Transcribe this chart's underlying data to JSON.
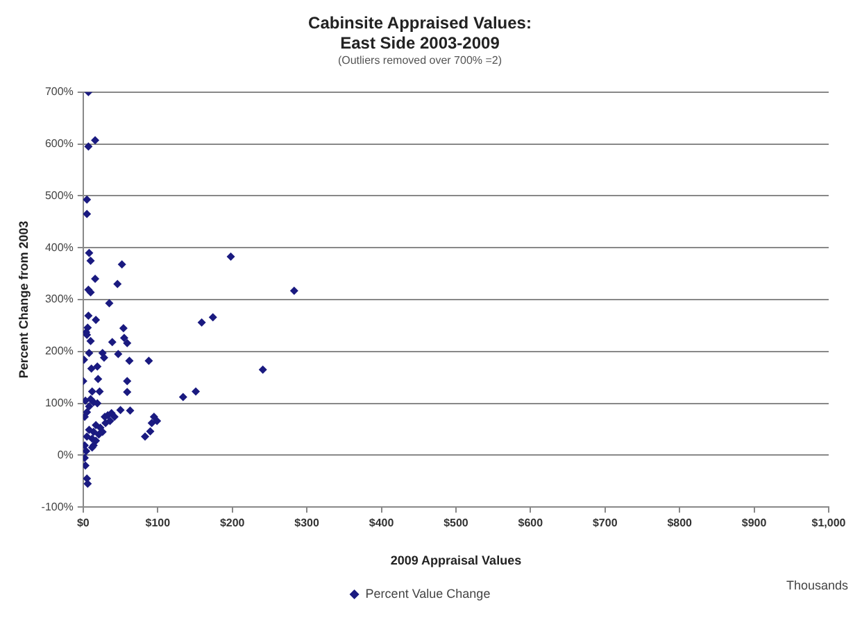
{
  "chart_data": {
    "type": "scatter",
    "title": [
      "Cabinsite Appraised Values:",
      "East Side 2003-2009"
    ],
    "subtitle": "(Outliers removed over 700% =2)",
    "xlabel": "2009 Appraisal Values",
    "ylabel": "Percent Change from 2003",
    "annotations": [
      "Thousands"
    ],
    "xlim": [
      0,
      1000
    ],
    "xticks": [
      {
        "value": 0,
        "label": "$0"
      },
      {
        "value": 100,
        "label": "$100"
      },
      {
        "value": 200,
        "label": "$200"
      },
      {
        "value": 300,
        "label": "$300"
      },
      {
        "value": 400,
        "label": "$400"
      },
      {
        "value": 500,
        "label": "$500"
      },
      {
        "value": 600,
        "label": "$600"
      },
      {
        "value": 700,
        "label": "$700"
      },
      {
        "value": 800,
        "label": "$800"
      },
      {
        "value": 900,
        "label": "$900"
      },
      {
        "value": 1000,
        "label": "$1,000"
      }
    ],
    "ylim": [
      -100,
      700
    ],
    "yticks": [
      {
        "value": -100,
        "label": "-100%"
      },
      {
        "value": 0,
        "label": "0%"
      },
      {
        "value": 100,
        "label": "100%"
      },
      {
        "value": 200,
        "label": "200%"
      },
      {
        "value": 300,
        "label": "300%"
      },
      {
        "value": 400,
        "label": "400%"
      },
      {
        "value": 500,
        "label": "500%"
      },
      {
        "value": 600,
        "label": "600%"
      },
      {
        "value": 700,
        "label": "700%"
      }
    ],
    "grid": "y",
    "legend": "bottom",
    "marker": "diamond",
    "series": [
      {
        "name": "Percent Value Change",
        "color": "#1a1a80",
        "x": [
          7,
          7,
          16,
          5,
          5,
          8,
          10,
          52,
          16,
          46,
          7,
          10,
          35,
          7,
          17,
          6,
          4,
          54,
          5,
          55,
          10,
          39,
          59,
          159,
          174,
          8,
          26,
          47,
          28,
          1,
          62,
          88,
          11,
          19,
          20,
          0,
          59,
          59,
          12,
          22,
          134,
          151,
          3,
          10,
          14,
          19,
          8,
          50,
          63,
          38,
          33,
          29,
          42,
          2,
          5,
          95,
          92,
          99,
          90,
          83,
          17,
          23,
          30,
          14,
          21,
          12,
          17,
          5,
          2,
          14,
          8,
          36,
          26,
          12,
          198,
          283,
          241,
          3,
          5,
          6,
          2,
          4
        ],
        "values": [
          700,
          595,
          607,
          493,
          465,
          390,
          375,
          368,
          340,
          330,
          319,
          314,
          293,
          269,
          261,
          246,
          237,
          245,
          232,
          226,
          220,
          218,
          216,
          256,
          266,
          197,
          197,
          195,
          188,
          184,
          182,
          182,
          167,
          171,
          147,
          143,
          143,
          122,
          123,
          123,
          112,
          123,
          105,
          108,
          102,
          100,
          94,
          87,
          86,
          81,
          77,
          74,
          74,
          74,
          83,
          74,
          62,
          66,
          46,
          36,
          58,
          53,
          62,
          45,
          40,
          32,
          28,
          36,
          19,
          19,
          49,
          66,
          45,
          15,
          383,
          317,
          165,
          -20,
          -45,
          -55,
          -5,
          8
        ]
      }
    ]
  }
}
